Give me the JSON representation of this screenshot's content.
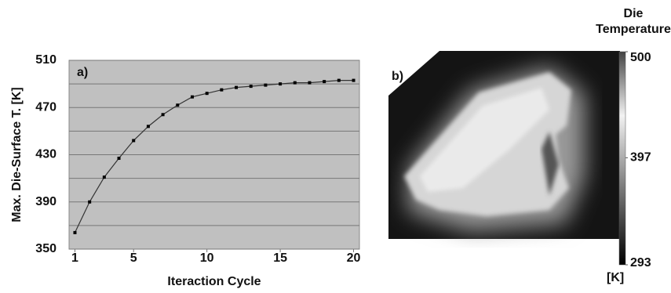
{
  "chart_data": [
    {
      "type": "line",
      "label": "a)",
      "xlabel": "Iteraction Cycle",
      "ylabel": "Max. Die-Surface T. [K]",
      "x": [
        1,
        2,
        3,
        4,
        5,
        6,
        7,
        8,
        9,
        10,
        11,
        12,
        13,
        14,
        15,
        16,
        17,
        18,
        19,
        20
      ],
      "values": [
        364,
        390,
        411,
        427,
        442,
        454,
        464,
        472,
        479,
        482,
        485,
        487,
        488,
        489,
        490,
        491,
        491,
        492,
        493,
        493
      ],
      "color": "#333333",
      "background": "#c0c0c0",
      "xlim": [
        0.6,
        20.4
      ],
      "xticks": [
        1,
        5,
        10,
        15,
        20
      ],
      "ylim": [
        350,
        510
      ],
      "yticks": [
        350,
        390,
        430,
        470,
        510
      ],
      "minor_yticks": [
        370,
        410,
        450,
        490
      ],
      "grid": true
    },
    {
      "type": "image",
      "label": "b)",
      "colorbar": {
        "title": "Die Temperature",
        "lim": [
          293,
          500
        ],
        "ticks": [
          293,
          397,
          500
        ],
        "unit": "[K]"
      }
    }
  ]
}
